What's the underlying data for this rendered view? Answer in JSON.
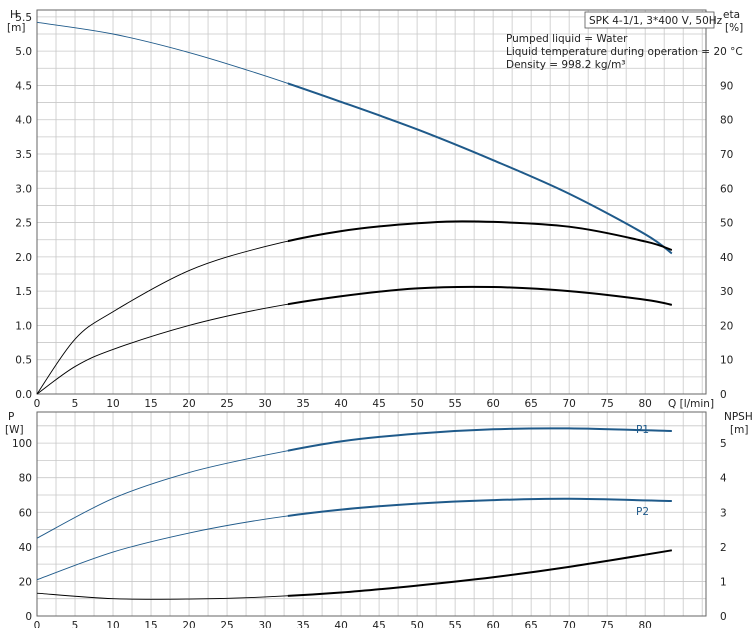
{
  "pump_model": "SPK 4-1/1, 3*400 V, 50Hz",
  "info_lines": [
    "Pumped liquid = Water",
    "Liquid temperature during operation = 20 °C",
    "Density = 998.2 kg/m³"
  ],
  "colors": {
    "blue": "#1f5a8a",
    "black": "#000000",
    "grid": "#c8c8c8"
  },
  "chart_data": [
    {
      "type": "line",
      "panel": "top",
      "xlabel": "Q [l/min]",
      "x_ticks": [
        0,
        5,
        10,
        15,
        20,
        25,
        30,
        35,
        40,
        45,
        50,
        55,
        60,
        65,
        70,
        75,
        80
      ],
      "xlim": [
        0,
        88
      ],
      "left_axis": {
        "label": "H",
        "unit": "[m]",
        "ticks": [
          "0.0",
          "0.5",
          "1.0",
          "1.5",
          "2.0",
          "2.5",
          "3.0",
          "3.5",
          "4.0",
          "4.5",
          "5.0",
          "5.5"
        ],
        "ylim": [
          0,
          5.6
        ]
      },
      "right_axis": {
        "label": "eta",
        "unit": "[%]",
        "ticks": [
          "0",
          "10",
          "20",
          "30",
          "40",
          "50",
          "60",
          "70",
          "80",
          "90"
        ],
        "ylim": [
          0,
          112
        ]
      },
      "grid": true,
      "series": [
        {
          "axis": "left",
          "color": "blue",
          "x": [
            0,
            10,
            20,
            30,
            40,
            50,
            60,
            70,
            80,
            83.5
          ],
          "y": [
            5.42,
            5.25,
            4.98,
            4.64,
            4.26,
            3.86,
            3.41,
            2.92,
            2.33,
            2.05
          ]
        },
        {
          "axis": "right",
          "color": "black",
          "x": [
            0,
            5,
            10,
            20,
            30,
            40,
            50,
            58,
            70,
            80,
            83.5
          ],
          "y": [
            0,
            16,
            24,
            36,
            43,
            47.5,
            49.8,
            50.3,
            48.8,
            44.5,
            42
          ]
        },
        {
          "axis": "right",
          "color": "black",
          "x": [
            0,
            5,
            10,
            20,
            30,
            40,
            50,
            60,
            70,
            80,
            83.5
          ],
          "y": [
            0,
            8,
            13,
            20,
            25,
            28.5,
            30.8,
            31.2,
            30,
            27.5,
            26
          ]
        }
      ]
    },
    {
      "type": "line",
      "panel": "bottom",
      "x_ticks": [
        0,
        5,
        10,
        15,
        20,
        25,
        30,
        35,
        40,
        45,
        50,
        55,
        60,
        65,
        70,
        75,
        80
      ],
      "xlim": [
        0,
        88
      ],
      "left_axis": {
        "label": "P",
        "unit": "[W]",
        "ticks": [
          "0",
          "20",
          "40",
          "60",
          "80",
          "100"
        ],
        "ylim": [
          0,
          118
        ]
      },
      "right_axis": {
        "label": "NPSH",
        "unit": "[m]",
        "ticks": [
          "0",
          "1",
          "2",
          "3",
          "4",
          "5"
        ],
        "ylim": [
          0,
          5.9
        ]
      },
      "grid": true,
      "series": [
        {
          "name": "P1",
          "axis": "left",
          "color": "blue",
          "x": [
            0,
            10,
            20,
            30,
            40,
            50,
            60,
            70,
            83.5
          ],
          "y": [
            45,
            68,
            83,
            93,
            101,
            105.5,
            108,
            108.5,
            107
          ]
        },
        {
          "name": "P2",
          "axis": "left",
          "color": "blue",
          "x": [
            0,
            10,
            20,
            30,
            40,
            50,
            60,
            70,
            83.5
          ],
          "y": [
            21,
            37,
            48,
            56,
            61.5,
            65,
            67,
            67.8,
            66.5
          ]
        },
        {
          "axis": "right",
          "color": "black",
          "x": [
            0,
            10,
            20,
            30,
            40,
            50,
            60,
            70,
            83.5
          ],
          "y": [
            0.66,
            0.5,
            0.49,
            0.55,
            0.68,
            0.88,
            1.12,
            1.42,
            1.9
          ]
        }
      ]
    }
  ]
}
